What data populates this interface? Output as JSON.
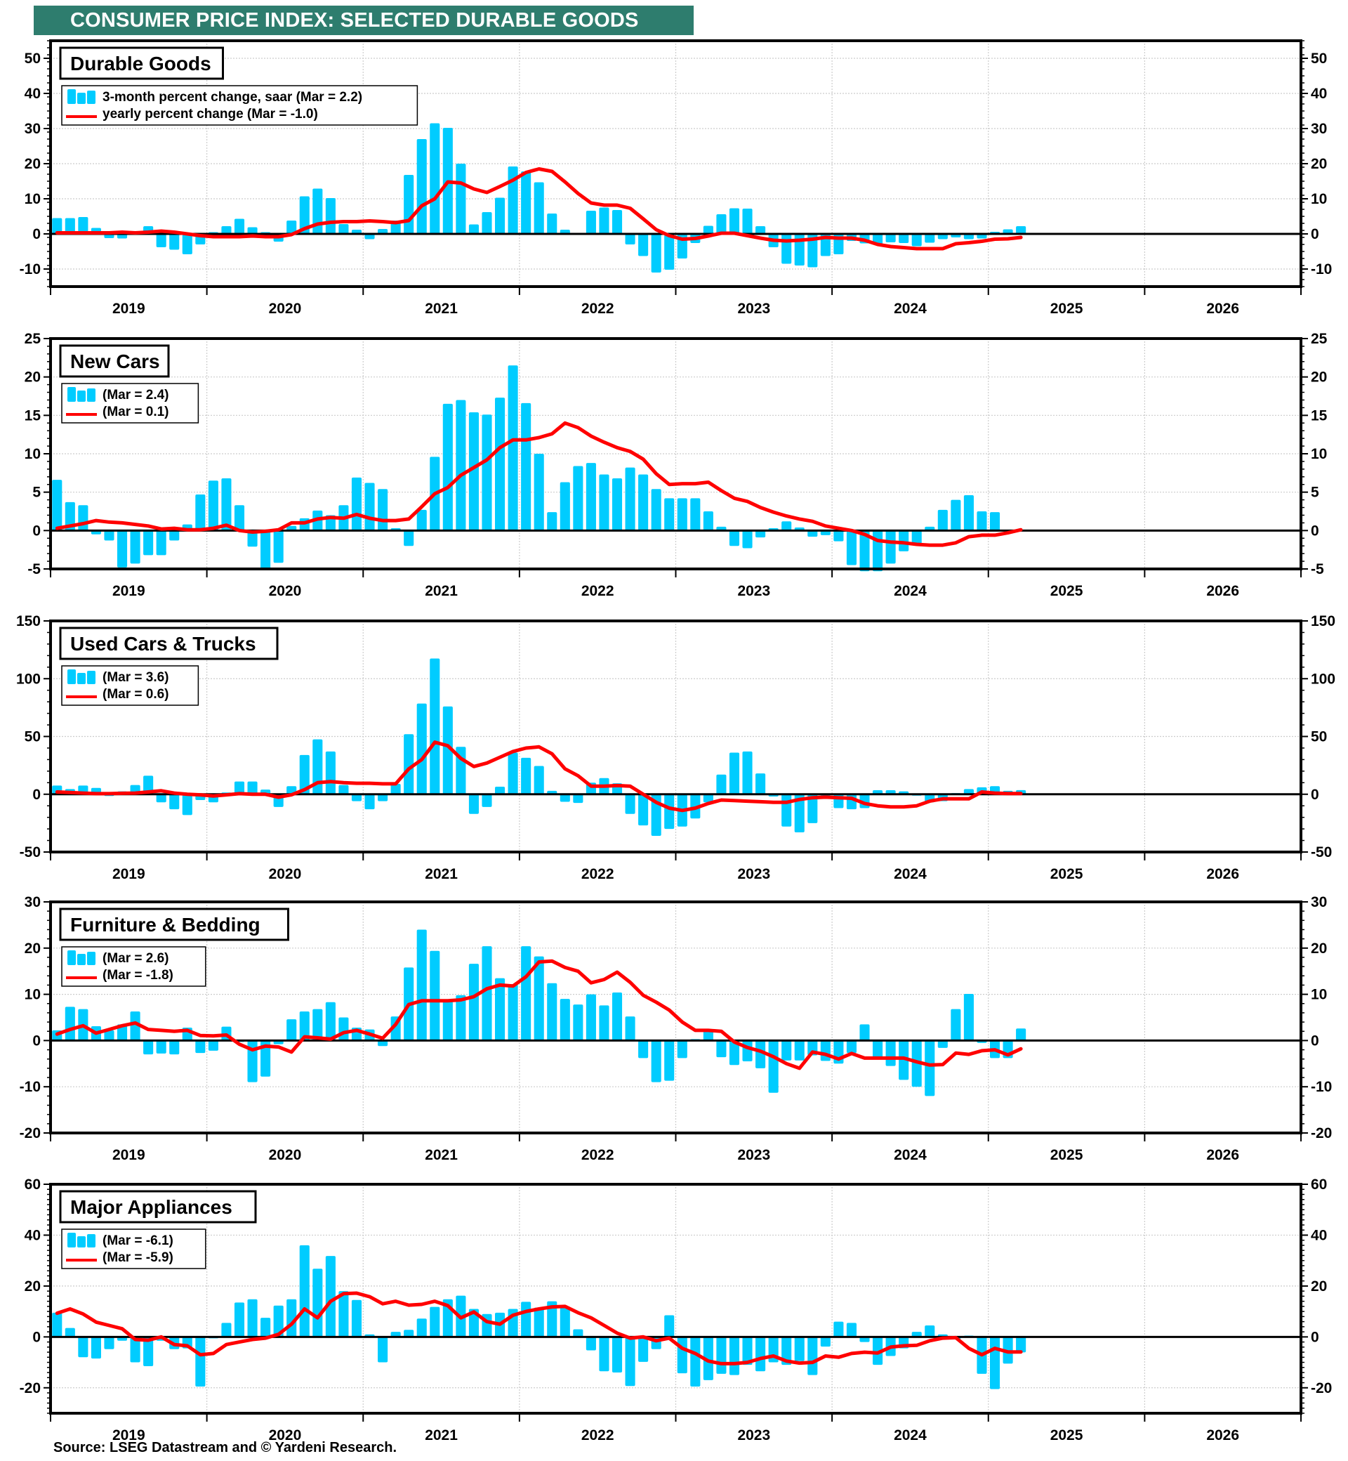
{
  "title": "CONSUMER PRICE INDEX: SELECTED DURABLE GOODS",
  "source": "Source: LSEG Datastream and © Yardeni Research.",
  "colors": {
    "bars": "#00ccff",
    "line": "#ff0000",
    "banner": "#2e7d6e",
    "axis": "#000000",
    "grid": "#cccccc"
  },
  "chart_data": [
    {
      "type": "bar+line",
      "title": "Durable Goods",
      "x_start": "2019-01",
      "x_ticks": [
        "2019",
        "2020",
        "2021",
        "2022",
        "2023",
        "2024",
        "2025",
        "2026"
      ],
      "ylim": [
        -15,
        55
      ],
      "yticks": [
        -10,
        0,
        10,
        20,
        30,
        40,
        50
      ],
      "legend": [
        "3-month percent change, saar  (Mar = 2.2)",
        "yearly percent change (Mar = -1.0)"
      ],
      "series": [
        {
          "name": "3-month percent change, saar",
          "type": "bar",
          "values": [
            4.5,
            4.5,
            4.8,
            1.7,
            -1.2,
            -1.3,
            0.8,
            2.2,
            -3.8,
            -4.5,
            -5.8,
            -3.0,
            0.5,
            2.2,
            4.3,
            1.9,
            0.5,
            -2.2,
            3.8,
            10.7,
            12.9,
            10.2,
            2.8,
            1.2,
            -1.5,
            1.4,
            3.8,
            16.8,
            27.0,
            31.5,
            30.2,
            20.0,
            2.7,
            6.2,
            10.3,
            19.2,
            17.8,
            14.7,
            5.8,
            1.2,
            0.3,
            6.6,
            7.5,
            6.8,
            -3.0,
            -6.3,
            -11.0,
            -10.2,
            -7.0,
            -2.6,
            2.3,
            5.6,
            7.3,
            7.2,
            2.2,
            -3.8,
            -8.5,
            -9.0,
            -9.5,
            -6.3,
            -5.8,
            -2.0,
            -2.7,
            -3.0,
            -2.4,
            -2.6,
            -3.5,
            -2.5,
            -1.5,
            -1.0,
            -1.5,
            -1.3,
            0.6,
            1.3,
            2.2
          ]
        },
        {
          "name": "yearly percent change",
          "type": "line",
          "values": [
            0.3,
            0.3,
            0.3,
            0.3,
            0.3,
            0.5,
            0.3,
            0.5,
            0.8,
            0.5,
            0.0,
            -0.5,
            -0.8,
            -0.8,
            -0.8,
            -0.6,
            -0.8,
            -0.8,
            -0.2,
            1.5,
            2.8,
            3.3,
            3.5,
            3.5,
            3.7,
            3.5,
            3.2,
            3.8,
            8.0,
            10.0,
            14.8,
            14.5,
            12.8,
            11.8,
            13.5,
            15.3,
            17.5,
            18.5,
            17.8,
            14.8,
            11.5,
            8.8,
            8.2,
            8.2,
            7.3,
            4.3,
            1.2,
            -0.5,
            -1.5,
            -1.3,
            -0.6,
            0.2,
            0.2,
            -0.5,
            -1.2,
            -1.8,
            -2.0,
            -1.8,
            -1.5,
            -1.0,
            -1.2,
            -1.2,
            -1.8,
            -3.0,
            -3.6,
            -3.9,
            -4.2,
            -4.2,
            -4.2,
            -2.8,
            -2.5,
            -2.1,
            -1.5,
            -1.4,
            -1.0
          ]
        }
      ]
    },
    {
      "type": "bar+line",
      "title": "New Cars",
      "x_start": "2019-01",
      "x_ticks": [
        "2019",
        "2020",
        "2021",
        "2022",
        "2023",
        "2024",
        "2025",
        "2026"
      ],
      "ylim": [
        -5,
        25
      ],
      "yticks": [
        -5,
        0,
        5,
        10,
        15,
        20,
        25
      ],
      "legend": [
        "(Mar = 2.4)",
        "(Mar = 0.1)"
      ],
      "series": [
        {
          "name": "3-month percent change, saar",
          "type": "bar",
          "values": [
            6.6,
            3.7,
            3.3,
            -0.5,
            -1.3,
            -4.8,
            -4.3,
            -3.2,
            -3.2,
            -1.3,
            0.8,
            4.7,
            6.5,
            6.8,
            3.3,
            -2.1,
            -5.0,
            -4.2,
            0.6,
            1.6,
            2.6,
            2.0,
            3.3,
            6.9,
            6.2,
            5.4,
            0.3,
            -2.0,
            2.7,
            9.6,
            16.5,
            17.0,
            15.4,
            15.1,
            17.3,
            21.5,
            16.6,
            10.0,
            2.4,
            6.3,
            8.4,
            8.8,
            7.3,
            6.8,
            8.2,
            7.3,
            5.4,
            4.2,
            4.2,
            4.2,
            2.5,
            0.5,
            -2.0,
            -2.3,
            -0.9,
            0.3,
            1.2,
            0.4,
            -0.8,
            -0.6,
            -1.4,
            -4.5,
            -5.3,
            -5.3,
            -4.3,
            -2.7,
            -1.8,
            0.5,
            2.7,
            4.0,
            4.6,
            2.5,
            2.4
          ]
        },
        {
          "name": "yearly percent change",
          "type": "line",
          "values": [
            0.3,
            0.6,
            0.9,
            1.3,
            1.1,
            1.0,
            0.8,
            0.6,
            0.2,
            0.3,
            0.1,
            0.1,
            0.3,
            0.7,
            0.0,
            -0.2,
            -0.1,
            0.1,
            1.0,
            1.0,
            1.5,
            1.7,
            1.6,
            2.1,
            1.6,
            1.3,
            1.3,
            1.5,
            3.1,
            4.8,
            5.6,
            7.2,
            8.2,
            9.2,
            10.8,
            11.8,
            11.8,
            12.1,
            12.6,
            14.0,
            13.4,
            12.3,
            11.5,
            10.8,
            10.3,
            9.3,
            7.4,
            6.0,
            6.1,
            6.1,
            6.3,
            5.2,
            4.2,
            3.8,
            3.0,
            2.4,
            1.9,
            1.5,
            1.2,
            0.6,
            0.3,
            0.0,
            -0.5,
            -1.3,
            -1.5,
            -1.6,
            -1.8,
            -1.9,
            -1.9,
            -1.6,
            -0.8,
            -0.6,
            -0.6,
            -0.3,
            0.1
          ]
        }
      ]
    },
    {
      "type": "bar+line",
      "title": "Used Cars & Trucks",
      "x_start": "2019-01",
      "x_ticks": [
        "2019",
        "2020",
        "2021",
        "2022",
        "2023",
        "2024",
        "2025",
        "2026"
      ],
      "ylim": [
        -50,
        150
      ],
      "yticks": [
        -50,
        0,
        50,
        100,
        150
      ],
      "legend": [
        "(Mar = 3.6)",
        "(Mar = 0.6)"
      ],
      "series": [
        {
          "name": "3-month percent change, saar",
          "type": "bar",
          "values": [
            7.5,
            4.5,
            7.5,
            5.5,
            -1.5,
            2.5,
            8.0,
            16.0,
            -7.0,
            -13.0,
            -18.0,
            -5.0,
            -7.0,
            1.5,
            11.0,
            11.0,
            4.0,
            -11.0,
            7.0,
            34.0,
            47.5,
            37.0,
            8.0,
            -6.0,
            -13.0,
            -6.0,
            9.0,
            52.0,
            78.5,
            117.5,
            76.0,
            41.0,
            -17.0,
            -11.0,
            6.5,
            36.0,
            31.5,
            24.5,
            3.0,
            -6.5,
            -7.5,
            10.0,
            14.0,
            9.5,
            -17.0,
            -27.0,
            -36.0,
            -30.0,
            -28.0,
            -21.0,
            -7.0,
            17.0,
            36.0,
            37.0,
            18.0,
            -2.0,
            -28.0,
            -33.0,
            -25.0,
            -1.0,
            -12.0,
            -13.0,
            -12.0,
            3.5,
            3.5,
            2.5,
            -1.0,
            -7.0,
            -6.0,
            1.0,
            4.5,
            6.0,
            7.0,
            3.0,
            3.6
          ]
        },
        {
          "name": "yearly percent change",
          "type": "line",
          "values": [
            2.0,
            1.5,
            1.0,
            0.5,
            0.5,
            0.8,
            1.0,
            2.0,
            3.0,
            1.0,
            0.0,
            -0.5,
            -1.5,
            -0.5,
            0.5,
            0.0,
            0.0,
            -2.5,
            -0.5,
            4.0,
            10.0,
            11.0,
            10.0,
            9.5,
            9.5,
            9.0,
            9.0,
            22.0,
            30.0,
            45.0,
            42.0,
            31.0,
            24.0,
            27.0,
            32.0,
            37.0,
            40.0,
            41.0,
            35.0,
            22.0,
            16.0,
            7.0,
            7.0,
            7.5,
            7.0,
            0.0,
            -7.0,
            -12.0,
            -14.0,
            -12.0,
            -8.0,
            -5.0,
            -5.5,
            -6.0,
            -6.5,
            -7.0,
            -7.0,
            -4.5,
            -3.0,
            -2.5,
            -3.0,
            -3.5,
            -8.0,
            -10.0,
            -11.0,
            -11.0,
            -10.0,
            -6.0,
            -4.0,
            -4.0,
            -4.0,
            2.0,
            1.0,
            0.6,
            0.6
          ]
        }
      ]
    },
    {
      "type": "bar+line",
      "title": "Furniture & Bedding",
      "x_start": "2019-01",
      "x_ticks": [
        "2019",
        "2020",
        "2021",
        "2022",
        "2023",
        "2024",
        "2025",
        "2026"
      ],
      "ylim": [
        -20,
        30
      ],
      "yticks": [
        -20,
        -10,
        0,
        10,
        20,
        30
      ],
      "legend": [
        "(Mar = 2.6)",
        "(Mar = -1.8)"
      ],
      "series": [
        {
          "name": "3-month percent change, saar",
          "type": "bar",
          "values": [
            2.2,
            7.3,
            6.8,
            3.1,
            2.2,
            3.5,
            6.3,
            -3.0,
            -2.8,
            -3.0,
            2.8,
            -2.7,
            -2.2,
            3.0,
            -0.3,
            -9.0,
            -7.8,
            -0.8,
            4.6,
            6.3,
            6.8,
            8.3,
            5.0,
            2.8,
            2.4,
            -1.2,
            5.2,
            15.8,
            24.0,
            19.4,
            8.5,
            9.8,
            16.6,
            20.4,
            13.5,
            12.2,
            20.4,
            18.2,
            12.4,
            9.0,
            7.8,
            10.0,
            7.6,
            10.4,
            5.2,
            -3.8,
            -9.0,
            -8.7,
            -3.8,
            0.3,
            2.3,
            -3.6,
            -5.3,
            -4.5,
            -6.0,
            -11.3,
            -4.3,
            -4.3,
            -3.2,
            -4.4,
            -5.0,
            -2.7,
            3.5,
            -3.7,
            -5.5,
            -8.5,
            -10.0,
            -12.0,
            -1.6,
            6.8,
            10.1,
            -0.5,
            -3.8,
            -3.8,
            2.6
          ]
        },
        {
          "name": "yearly percent change",
          "type": "line",
          "values": [
            1.4,
            2.4,
            3.2,
            1.6,
            2.4,
            3.2,
            3.8,
            2.4,
            2.2,
            2.0,
            2.2,
            1.1,
            1.0,
            1.2,
            -0.8,
            -2.0,
            -1.2,
            -1.4,
            -2.5,
            0.8,
            0.6,
            0.3,
            1.7,
            2.2,
            1.4,
            0.5,
            3.5,
            7.8,
            8.6,
            8.6,
            8.6,
            8.8,
            9.5,
            11.2,
            12.0,
            11.8,
            13.8,
            17.0,
            17.2,
            15.8,
            15.0,
            12.5,
            13.2,
            14.8,
            12.6,
            9.8,
            8.3,
            6.6,
            4.0,
            2.2,
            2.2,
            2.0,
            -0.3,
            -1.5,
            -2.3,
            -3.5,
            -5.0,
            -6.0,
            -2.5,
            -3.0,
            -4.0,
            -2.8,
            -3.8,
            -3.8,
            -3.8,
            -3.8,
            -4.6,
            -5.3,
            -5.2,
            -2.7,
            -3.0,
            -2.2,
            -2.0,
            -3.1,
            -1.8
          ]
        }
      ]
    },
    {
      "type": "bar+line",
      "title": "Major Appliances",
      "x_start": "2019-01",
      "x_ticks": [
        "2019",
        "2020",
        "2021",
        "2022",
        "2023",
        "2024",
        "2025",
        "2026"
      ],
      "ylim": [
        -30,
        60
      ],
      "yticks": [
        -20,
        0,
        20,
        40,
        60
      ],
      "legend": [
        "(Mar = -6.1)",
        "(Mar = -5.9)"
      ],
      "series": [
        {
          "name": "3-month percent change, saar",
          "type": "bar",
          "values": [
            9.5,
            3.5,
            -8.0,
            -8.5,
            -4.8,
            -1.5,
            -10.0,
            -11.5,
            -1.5,
            -4.8,
            -4.5,
            -19.5,
            -0.5,
            5.5,
            13.5,
            14.8,
            7.5,
            12.3,
            14.8,
            36.0,
            26.8,
            31.8,
            18.0,
            14.5,
            1.0,
            -10.0,
            2.0,
            2.8,
            7.2,
            11.8,
            14.8,
            16.2,
            11.0,
            9.0,
            9.5,
            11.0,
            13.8,
            11.5,
            14.0,
            11.5,
            3.0,
            -5.3,
            -13.5,
            -14.0,
            -19.3,
            -9.8,
            -4.8,
            8.5,
            -14.3,
            -19.5,
            -17.0,
            -14.5,
            -15.0,
            -11.0,
            -13.5,
            -10.0,
            -11.0,
            -9.5,
            -15.0,
            -3.8,
            6.0,
            5.5,
            -2.0,
            -11.0,
            -7.5,
            -4.5,
            2.0,
            4.5,
            1.0,
            -1.0,
            0.5,
            -14.5,
            -20.5,
            -10.5,
            -6.1
          ]
        },
        {
          "name": "yearly percent change",
          "type": "line",
          "values": [
            9.3,
            11.0,
            9.0,
            5.8,
            4.5,
            3.2,
            -1.0,
            -1.3,
            0.0,
            -3.0,
            -3.5,
            -7.0,
            -6.5,
            -3.0,
            -2.0,
            -1.0,
            -0.5,
            1.0,
            5.0,
            11.0,
            7.5,
            14.0,
            17.0,
            17.2,
            15.8,
            13.0,
            14.0,
            12.5,
            12.8,
            14.0,
            12.3,
            7.5,
            9.8,
            6.0,
            5.0,
            8.5,
            10.0,
            11.0,
            11.8,
            12.0,
            9.5,
            7.5,
            4.5,
            1.5,
            -0.5,
            0.0,
            -1.5,
            -0.5,
            -4.5,
            -6.5,
            -9.5,
            -10.5,
            -10.5,
            -10.0,
            -8.5,
            -7.5,
            -9.5,
            -10.3,
            -10.0,
            -7.5,
            -8.0,
            -6.5,
            -6.0,
            -6.3,
            -4.0,
            -3.5,
            -3.3,
            -1.5,
            -0.5,
            -0.3,
            -4.5,
            -7.0,
            -4.5,
            -5.9,
            -5.9
          ]
        }
      ]
    }
  ]
}
